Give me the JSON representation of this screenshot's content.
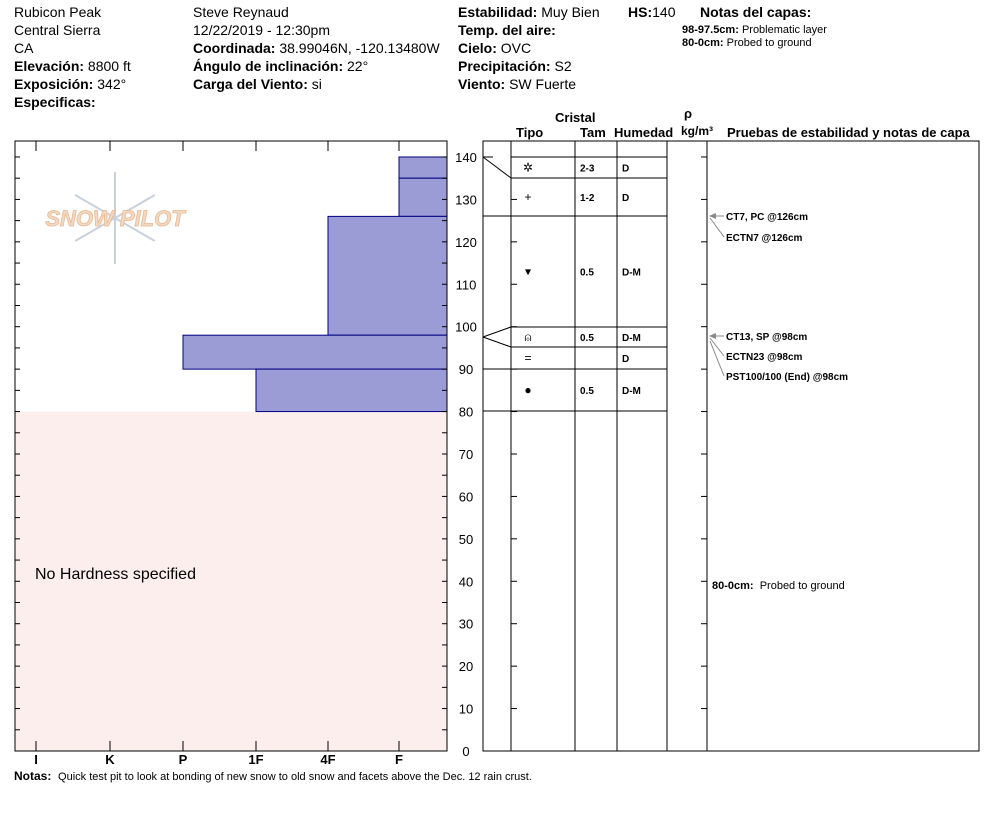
{
  "header": {
    "location": "Rubicon Peak",
    "range": "Central Sierra",
    "state": "CA",
    "elevation_label": "Elevación:",
    "elevation": "8800 ft",
    "aspect_label": "Exposición:",
    "aspect": "342°",
    "specifics_label": "Especificas:",
    "observer": "Steve Reynaud",
    "datetime": "12/22/2019 - 12:30pm",
    "coord_label": "Coordinada:",
    "coord": "38.99046N, -120.13480W",
    "slope_label": "Ángulo de inclinación:",
    "slope": "22°",
    "windload_label": "Carga del Viento:",
    "windload": "si",
    "stability_label": "Estabilidad:",
    "stability": "Muy Bien",
    "airtemp_label": "Temp. del aire:",
    "sky_label": "Cielo:",
    "sky": "OVC",
    "precip_label": "Precipitación:",
    "precip": "S2",
    "wind_label": "Viento:",
    "wind": "SW Fuerte",
    "hs_label": "HS:",
    "hs": "140",
    "layer_notes_label": "Notas del capas:",
    "layer_notes": [
      {
        "range": "98-97.5cm:",
        "text": "Problematic layer"
      },
      {
        "range": "80-0cm:",
        "text": "Probed to ground"
      }
    ]
  },
  "logo": "SNOW PILOT",
  "columns": {
    "crystal": "Cristal",
    "type": "Tipo",
    "size": "Tam",
    "moisture": "Humedad",
    "rho": "ρ",
    "density": "kg/m³",
    "tests": "Pruebas de estabilidad y notas de capa"
  },
  "hardness_axis": [
    "I",
    "K",
    "P",
    "1F",
    "4F",
    "F"
  ],
  "depth_ticks": [
    0,
    10,
    20,
    30,
    40,
    50,
    60,
    70,
    80,
    90,
    100,
    110,
    120,
    130,
    140
  ],
  "no_hardness": "No Hardness specified",
  "layers": [
    {
      "top": 140,
      "bottom": 135,
      "hardness": "F",
      "grain": "✲",
      "size": "2-3",
      "moisture": "D"
    },
    {
      "top": 135,
      "bottom": 126,
      "hardness": "F",
      "grain": "+",
      "size": "1-2",
      "moisture": "D"
    },
    {
      "top": 126,
      "bottom": 98,
      "hardness": "4F",
      "grain": "▾",
      "size": "0.5",
      "moisture": "D-M"
    },
    {
      "top": 98,
      "bottom": 90,
      "hardness": "P",
      "grain": "⍝",
      "size": "0.5",
      "moisture": "D-M"
    },
    {
      "top": 90,
      "bottom": 80,
      "hardness": "1F",
      "grain": "●",
      "size": "0.5",
      "moisture": "D-M"
    }
  ],
  "tests": [
    "CT7, PC @126cm",
    "ECTN7 @126cm",
    "CT13, SP @98cm",
    "ECTN23 @98cm",
    "PST100/100 (End) @98cm"
  ],
  "test_note": {
    "range": "80-0cm:",
    "text": "Probed to ground"
  },
  "notes_label": "Notas:",
  "notes": "Quick test pit to look at bonding of new snow to old snow and facets above the Dec. 12 rain crust.",
  "colors": {
    "bar": "#9b9bd6",
    "ground": "#fdeeee"
  }
}
